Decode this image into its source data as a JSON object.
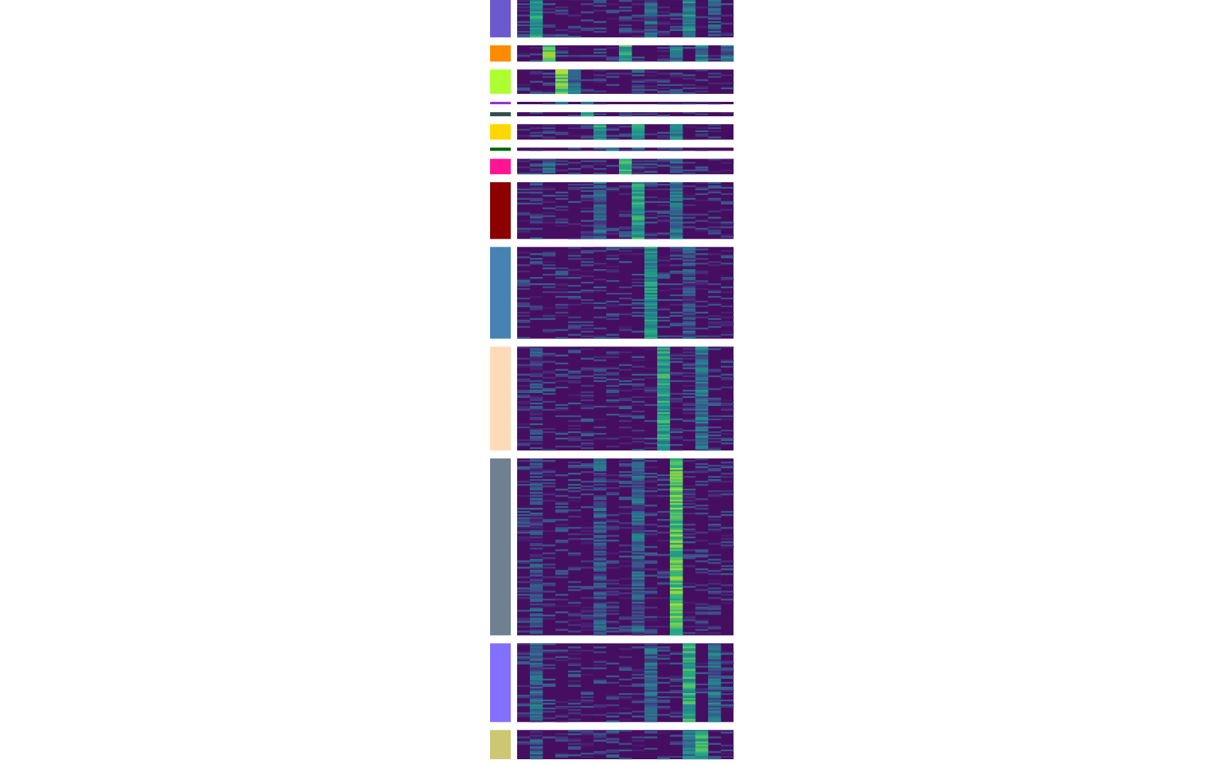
{
  "chart_data": {
    "type": "heatmap",
    "title": "",
    "xlabel": "",
    "ylabel": "",
    "colormap": "viridis",
    "value_range": [
      0,
      1
    ],
    "background_value": 0.05,
    "n_columns": 17,
    "groups": [
      {
        "color": "#6a5acd",
        "rows": 48,
        "high_columns": [
          {
            "col": 1,
            "v": 0.55
          },
          {
            "col": 10,
            "v": 0.3
          },
          {
            "col": 13,
            "v": 0.45
          },
          {
            "col": 15,
            "v": 0.25
          }
        ]
      },
      {
        "color": "#ff8c00",
        "rows": 20,
        "high_columns": [
          {
            "col": 2,
            "v": 0.7
          },
          {
            "col": 8,
            "v": 0.6
          },
          {
            "col": 12,
            "v": 0.4
          },
          {
            "col": 14,
            "v": 0.4
          },
          {
            "col": 16,
            "v": 0.35
          }
        ]
      },
      {
        "color": "#adff2f",
        "rows": 30,
        "high_columns": [
          {
            "col": 3,
            "v": 0.75
          },
          {
            "col": 4,
            "v": 0.35
          },
          {
            "col": 9,
            "v": 0.2
          }
        ]
      },
      {
        "color": "#9932cc",
        "rows": 3,
        "high_columns": [
          {
            "col": 3,
            "v": 0.5
          },
          {
            "col": 5,
            "v": 0.45
          }
        ]
      },
      {
        "color": "#2f4f4f",
        "rows": 5,
        "high_columns": [
          {
            "col": 5,
            "v": 0.5
          }
        ]
      },
      {
        "color": "#ffd700",
        "rows": 19,
        "high_columns": [
          {
            "col": 6,
            "v": 0.55
          },
          {
            "col": 9,
            "v": 0.5
          },
          {
            "col": 12,
            "v": 0.4
          }
        ]
      },
      {
        "color": "#006400",
        "rows": 4,
        "high_columns": [
          {
            "col": 7,
            "v": 0.5
          },
          {
            "col": 9,
            "v": 0.3
          },
          {
            "col": 12,
            "v": 0.3
          }
        ]
      },
      {
        "color": "#ff1493",
        "rows": 19,
        "high_columns": [
          {
            "col": 2,
            "v": 0.35
          },
          {
            "col": 8,
            "v": 0.6
          },
          {
            "col": 12,
            "v": 0.3
          }
        ]
      },
      {
        "color": "#8b0000",
        "rows": 70,
        "high_columns": [
          {
            "col": 6,
            "v": 0.3
          },
          {
            "col": 9,
            "v": 0.55
          },
          {
            "col": 12,
            "v": 0.35
          }
        ]
      },
      {
        "color": "#4682b4",
        "rows": 113,
        "high_columns": [
          {
            "col": 10,
            "v": 0.5
          },
          {
            "col": 13,
            "v": 0.25
          }
        ]
      },
      {
        "color": "#ffdab9",
        "rows": 128,
        "high_columns": [
          {
            "col": 11,
            "v": 0.55
          },
          {
            "col": 14,
            "v": 0.35
          },
          {
            "col": 1,
            "v": 0.2
          }
        ]
      },
      {
        "color": "#708090",
        "rows": 218,
        "high_columns": [
          {
            "col": 12,
            "v": 0.72
          },
          {
            "col": 6,
            "v": 0.25
          },
          {
            "col": 9,
            "v": 0.3
          },
          {
            "col": 1,
            "v": 0.2
          }
        ]
      },
      {
        "color": "#8470ff",
        "rows": 97,
        "high_columns": [
          {
            "col": 13,
            "v": 0.6
          },
          {
            "col": 15,
            "v": 0.35
          },
          {
            "col": 1,
            "v": 0.3
          },
          {
            "col": 10,
            "v": 0.3
          }
        ]
      },
      {
        "color": "#cdc673",
        "rows": 36,
        "high_columns": [
          {
            "col": 14,
            "v": 0.6
          },
          {
            "col": 13,
            "v": 0.4
          },
          {
            "col": 1,
            "v": 0.25
          }
        ]
      }
    ]
  }
}
